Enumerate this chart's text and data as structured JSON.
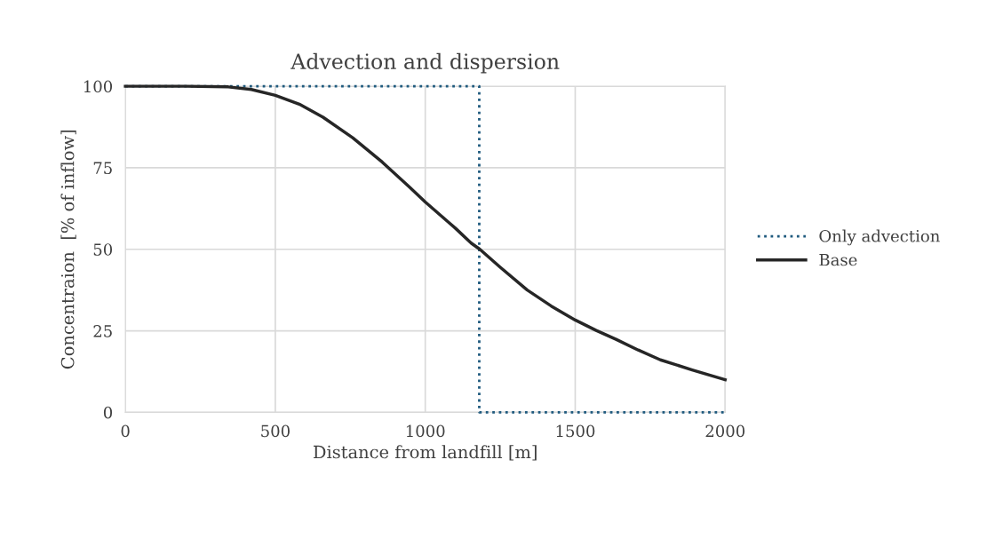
{
  "chart_data": {
    "type": "line",
    "title": "Advection and dispersion",
    "xlabel": "Distance from landfill [m]",
    "ylabel": "Concentraion  [% of inflow]",
    "series": [
      {
        "name": "Only advection",
        "color": "#1f5a7e",
        "line_style": "dotted",
        "x": [
          0,
          1180,
          1180,
          2000
        ],
        "values": [
          100,
          100,
          0,
          0
        ]
      },
      {
        "name": "Base",
        "color": "#262626",
        "line_style": "solid",
        "x": [
          0,
          200,
          343,
          420,
          500,
          580,
          659,
          758,
          857,
          946,
          1000,
          1100,
          1153,
          1182,
          1250,
          1340,
          1420,
          1500,
          1570,
          1636,
          1710,
          1784,
          1890,
          2000
        ],
        "values": [
          100,
          100,
          99.8,
          99,
          97.2,
          94.5,
          90.5,
          84.2,
          76.7,
          69.2,
          64.5,
          56.5,
          51.9,
          50,
          44.5,
          37.5,
          32.6,
          28.3,
          25.1,
          22.4,
          19.1,
          16.1,
          13,
          10
        ]
      }
    ],
    "xlim": [
      0,
      2000
    ],
    "xticks": [
      0,
      500,
      1000,
      1500,
      2000
    ],
    "ylim": [
      0,
      100
    ],
    "yticks": [
      0,
      25,
      50,
      75,
      100
    ],
    "grid": true,
    "legend": "right",
    "marker": "none"
  }
}
